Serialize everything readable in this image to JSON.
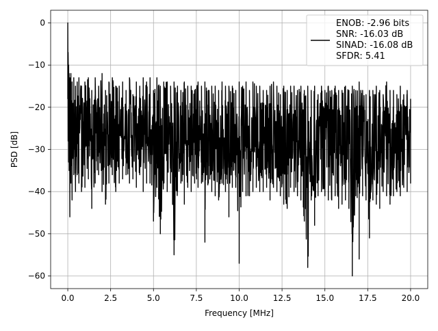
{
  "chart_data": {
    "type": "line",
    "xlabel": "Frequency [MHz]",
    "ylabel": "PSD [dB]",
    "xlim": [
      -1.0,
      21.0
    ],
    "ylim": [
      -63.0,
      3.0
    ],
    "xticks": [
      0.0,
      2.5,
      5.0,
      7.5,
      10.0,
      12.5,
      15.0,
      17.5,
      20.0
    ],
    "xtick_labels": [
      "0.0",
      "2.5",
      "5.0",
      "7.5",
      "10.0",
      "12.5",
      "15.0",
      "17.5",
      "20.0"
    ],
    "yticks": [
      0,
      -10,
      -20,
      -30,
      -40,
      -50,
      -60
    ],
    "ytick_labels": [
      "0",
      "−10",
      "−20",
      "−30",
      "−40",
      "−50",
      "−60"
    ],
    "grid": true,
    "legend_position": "top-right",
    "series": [
      {
        "name": "ENOB: -2.96 bits\nSNR: -16.03 dB\nSINAD: -16.08 dB\nSFDR: 5.41",
        "color": "#000000",
        "legend_lines": [
          "ENOB: -2.96 bits",
          "SNR: -16.03 dB",
          "SINAD: -16.08 dB",
          "SFDR: 5.41"
        ],
        "x": [
          0.0,
          0.02,
          0.05,
          0.08,
          0.12,
          0.18,
          0.25,
          0.35,
          0.45,
          0.55,
          0.65,
          0.8,
          1.0,
          1.2,
          1.4,
          1.6,
          1.8,
          2.0,
          2.2,
          2.4,
          2.6,
          2.8,
          3.0,
          3.2,
          3.4,
          3.6,
          3.8,
          4.0,
          4.2,
          4.4,
          4.6,
          4.8,
          5.0,
          5.2,
          5.4,
          5.6,
          5.8,
          6.0,
          6.2,
          6.4,
          6.6,
          6.8,
          7.0,
          7.2,
          7.4,
          7.6,
          7.8,
          8.0,
          8.2,
          8.4,
          8.6,
          8.8,
          9.0,
          9.2,
          9.4,
          9.6,
          9.8,
          10.0,
          10.2,
          10.4,
          10.6,
          10.8,
          11.0,
          11.2,
          11.4,
          11.6,
          11.8,
          12.0,
          12.2,
          12.4,
          12.6,
          12.8,
          13.0,
          13.2,
          13.4,
          13.6,
          13.8,
          14.0,
          14.2,
          14.4,
          14.6,
          14.8,
          15.0,
          15.2,
          15.4,
          15.6,
          15.8,
          16.0,
          16.2,
          16.4,
          16.6,
          16.8,
          17.0,
          17.2,
          17.4,
          17.6,
          17.8,
          18.0,
          18.2,
          18.4,
          18.6,
          18.8,
          19.0,
          19.2,
          19.4,
          19.6,
          19.8,
          20.0
        ],
        "y_upper": [
          0,
          -7,
          -10,
          -12,
          -13,
          -12,
          -14,
          -13,
          -15,
          -14,
          -13,
          -15,
          -14,
          -13,
          -16,
          -13,
          -15,
          -12,
          -16,
          -14,
          -13,
          -15,
          -15,
          -14,
          -16,
          -13,
          -17,
          -14,
          -15,
          -13,
          -14,
          -13,
          -16,
          -13,
          -15,
          -14,
          -14,
          -15,
          -14,
          -15,
          -16,
          -14,
          -15,
          -15,
          -16,
          -14,
          -15,
          -14,
          -16,
          -15,
          -15,
          -16,
          -14,
          -15,
          -15,
          -15,
          -16,
          -14,
          -15,
          -14,
          -16,
          -14,
          -15,
          -15,
          -16,
          -16,
          -15,
          -14,
          -15,
          -17,
          -15,
          -16,
          -15,
          -15,
          -16,
          -15,
          -16,
          -15,
          -16,
          -15,
          -17,
          -15,
          -16,
          -15,
          -16,
          -15,
          -16,
          -16,
          -15,
          -16,
          -15,
          -16,
          -14,
          -16,
          -17,
          -16,
          -16,
          -15,
          -16,
          -17,
          -14,
          -16,
          -16,
          -17,
          -15,
          -17,
          -16,
          -18
        ],
        "y_lower": [
          -18,
          -28,
          -33,
          -35,
          -46,
          -38,
          -42,
          -36,
          -40,
          -36,
          -38,
          -40,
          -39,
          -37,
          -44,
          -38,
          -36,
          -40,
          -43,
          -38,
          -36,
          -40,
          -38,
          -37,
          -36,
          -38,
          -37,
          -39,
          -36,
          -40,
          -38,
          -38,
          -47,
          -39,
          -50,
          -38,
          -40,
          -38,
          -55,
          -40,
          -38,
          -43,
          -39,
          -40,
          -38,
          -39,
          -38,
          -52,
          -38,
          -40,
          -41,
          -42,
          -38,
          -40,
          -46,
          -39,
          -39,
          -57,
          -40,
          -41,
          -41,
          -40,
          -39,
          -40,
          -40,
          -39,
          -42,
          -39,
          -40,
          -41,
          -43,
          -44,
          -39,
          -40,
          -41,
          -42,
          -47,
          -58,
          -42,
          -48,
          -41,
          -40,
          -41,
          -42,
          -42,
          -41,
          -44,
          -43,
          -42,
          -44,
          -60,
          -41,
          -56,
          -41,
          -42,
          -51,
          -42,
          -43,
          -44,
          -40,
          -41,
          -43,
          -41,
          -40,
          -41,
          -39,
          -40,
          -38
        ]
      }
    ]
  }
}
